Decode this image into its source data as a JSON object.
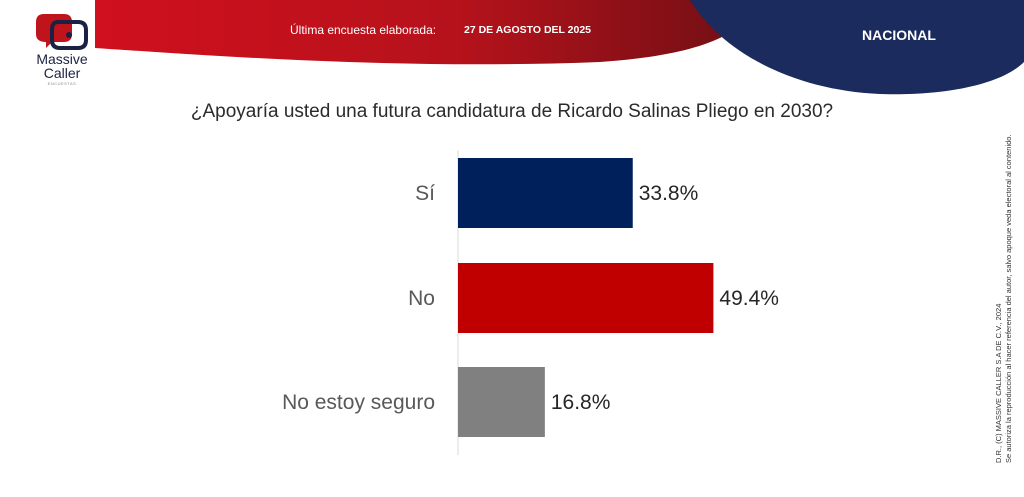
{
  "header": {
    "survey_label": "Última encuesta elaborada:",
    "survey_date": "27 DE AGOSTO DEL 2025",
    "region": "NACIONAL",
    "colors": {
      "red": "#b5121b",
      "dark_red": "#6e0f14",
      "navy": "#1b2b5e"
    }
  },
  "logo": {
    "name_line1": "Massive",
    "name_line2": "Caller",
    "tagline": "ENCUESTAS"
  },
  "question": "¿Apoyaría usted una futura candidatura de Ricardo Salinas Pliego en 2030?",
  "chart_data": {
    "type": "bar",
    "orientation": "horizontal",
    "categories": [
      "Sí",
      "No",
      "No estoy seguro"
    ],
    "values": [
      33.8,
      49.4,
      16.8
    ],
    "value_labels": [
      "33.8%",
      "49.4%",
      "16.8%"
    ],
    "colors": [
      "#00205c",
      "#c00000",
      "#808080"
    ],
    "xlim": [
      0,
      100
    ],
    "grid": false,
    "legend": "none"
  },
  "copyright": {
    "line1": "D.R., (C) MASSIVE CALLER S.A DE C.V., 2024",
    "line2": "Se autoriza la reproducción al hacer referencia del autor, salvo apoque veda electoral al contenido."
  }
}
